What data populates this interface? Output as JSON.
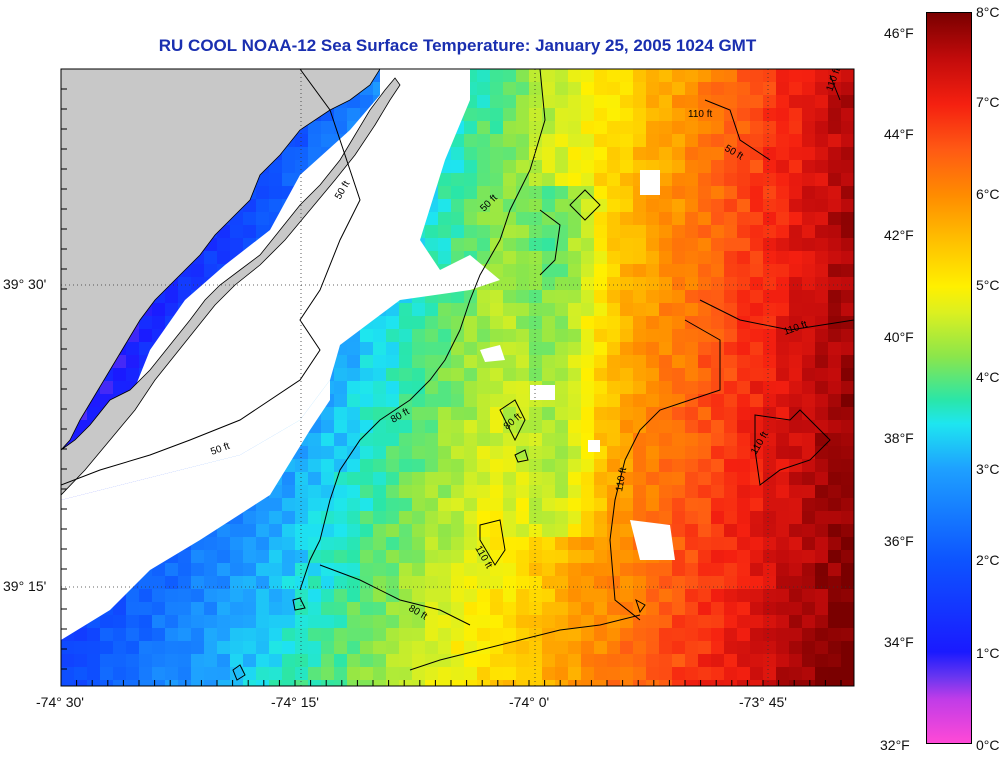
{
  "title": "RU COOL  NOAA-12  Sea Surface Temperature:  January 25, 2005 1024 GMT",
  "map": {
    "lon_range": [
      -74.5,
      -73.65
    ],
    "lat_range": [
      39.0833,
      39.6833
    ],
    "lon_ticks": [
      "-74° 30'",
      "-74° 15'",
      "-74° 0'",
      "-73° 45'"
    ],
    "lat_ticks": [
      "39° 30'",
      "39° 15'"
    ],
    "land_color": "#c8c8c8",
    "cloud_color": "#ffffff",
    "contour_labels": [
      "110 ft",
      "50 ft",
      "110 ft",
      "50 ft",
      "50 ft",
      "110 ft",
      "80 ft",
      "80 ft",
      "110 ft",
      "110 ft",
      "50 ft",
      "110 ft",
      "80 ft"
    ]
  },
  "colorbar": {
    "fahrenheit_labels": [
      "46°F",
      "44°F",
      "42°F",
      "40°F",
      "38°F",
      "36°F",
      "34°F",
      "32°F"
    ],
    "celsius_labels": [
      "8°C",
      "7°C",
      "6°C",
      "5°C",
      "4°C",
      "3°C",
      "2°C",
      "1°C",
      "0°C"
    ],
    "range_celsius": [
      0,
      8
    ]
  }
}
